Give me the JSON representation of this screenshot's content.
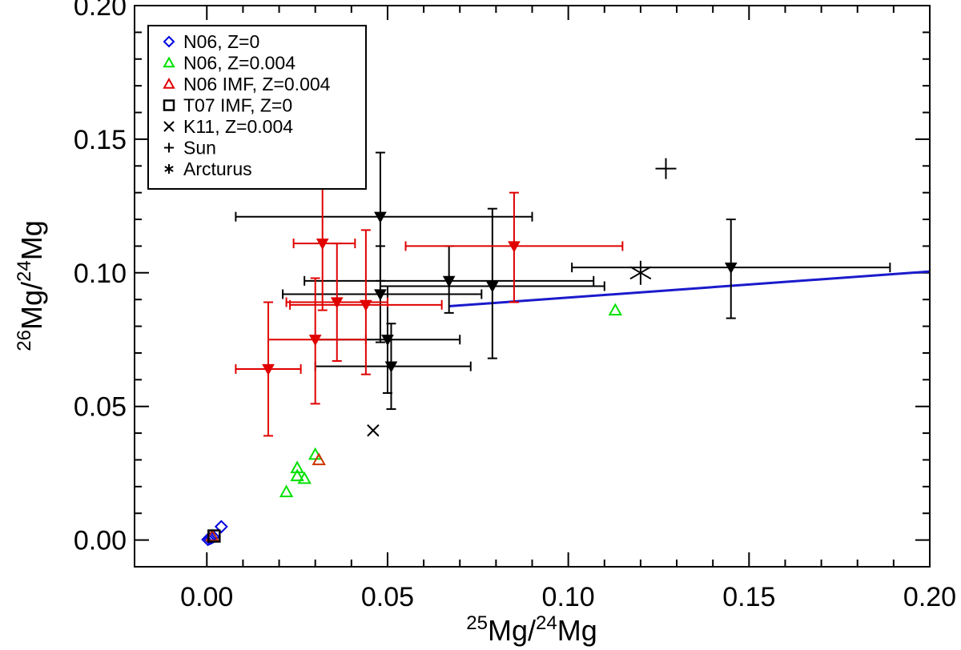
{
  "chart_data": {
    "type": "scatter",
    "xlabel": {
      "sup": "25",
      "base": "Mg/",
      "sup2": "24",
      "base2": "Mg"
    },
    "ylabel": {
      "sup": "26",
      "base": "Mg/",
      "sup2": "24",
      "base2": "Mg"
    },
    "xlim": [
      -0.02,
      0.2
    ],
    "ylim": [
      -0.01,
      0.2
    ],
    "xticks": [
      0.0,
      0.05,
      0.1,
      0.15,
      0.2
    ],
    "xtick_labels": [
      "0.00",
      "0.05",
      "0.10",
      "0.15",
      "0.20"
    ],
    "yticks": [
      0.0,
      0.05,
      0.1,
      0.15,
      0.2
    ],
    "ytick_labels": [
      "0.00",
      "0.05",
      "0.10",
      "0.15",
      "0.20"
    ],
    "colors": {
      "blue": "#0000e0",
      "green": "#00e000",
      "red": "#e00000",
      "black": "#000000",
      "line": "#1a1acc"
    },
    "legend": [
      {
        "label": "N06, Z=0",
        "marker": "diamond",
        "color": "#0000e0"
      },
      {
        "label": "N06, Z=0.004",
        "marker": "triangle",
        "color": "#00e000"
      },
      {
        "label": "N06 IMF, Z=0.004",
        "marker": "triangle",
        "color": "#e00000"
      },
      {
        "label": "T07 IMF, Z=0",
        "marker": "square",
        "color": "#000000"
      },
      {
        "label": "K11, Z=0.004",
        "marker": "cross",
        "color": "#000000"
      },
      {
        "label": "Sun",
        "marker": "plus",
        "color": "#000000"
      },
      {
        "label": "Arcturus",
        "marker": "asterisk",
        "color": "#000000"
      }
    ],
    "series": [
      {
        "name": "N06, Z=0",
        "marker": "diamond",
        "color": "#0000e0",
        "points": [
          [
            0.0003,
            0.0002
          ],
          [
            0.0008,
            0.0005
          ],
          [
            0.0013,
            0.0008
          ],
          [
            0.0018,
            0.0012
          ],
          [
            0.004,
            0.005
          ]
        ]
      },
      {
        "name": "N06, Z=0.004",
        "marker": "triangle",
        "color": "#00e000",
        "points": [
          [
            0.022,
            0.018
          ],
          [
            0.025,
            0.024
          ],
          [
            0.025,
            0.027
          ],
          [
            0.027,
            0.023
          ],
          [
            0.03,
            0.032
          ],
          [
            0.113,
            0.086
          ]
        ]
      },
      {
        "name": "N06 IMF, Z=0.004",
        "marker": "triangle",
        "color": "#cc3300",
        "points": [
          [
            0.031,
            0.03
          ],
          [
            0.0015,
            0.0015
          ]
        ]
      },
      {
        "name": "T07 IMF, Z=0",
        "marker": "square",
        "color": "#000000",
        "points": [
          [
            0.002,
            0.0015
          ]
        ]
      },
      {
        "name": "K11, Z=0.004",
        "marker": "cross",
        "color": "#000000",
        "points": [
          [
            0.046,
            0.041
          ]
        ]
      },
      {
        "name": "Sun",
        "marker": "plus",
        "color": "#000000",
        "points": [
          [
            0.127,
            0.139
          ]
        ]
      },
      {
        "name": "Arcturus",
        "marker": "asterisk",
        "color": "#000000",
        "points": [
          [
            0.12,
            0.1
          ]
        ]
      }
    ],
    "errorbars_red": [
      {
        "x": 0.017,
        "y": 0.064,
        "xlo": 0.008,
        "xhi": 0.026,
        "ylo": 0.039,
        "yhi": 0.089
      },
      {
        "x": 0.03,
        "y": 0.075,
        "xlo": 0.017,
        "xhi": 0.044,
        "ylo": 0.051,
        "yhi": 0.098
      },
      {
        "x": 0.032,
        "y": 0.111,
        "xlo": 0.024,
        "xhi": 0.041,
        "ylo": 0.086,
        "yhi": 0.136
      },
      {
        "x": 0.036,
        "y": 0.089,
        "xlo": 0.022,
        "xhi": 0.05,
        "ylo": 0.067,
        "yhi": 0.111
      },
      {
        "x": 0.044,
        "y": 0.088,
        "xlo": 0.023,
        "xhi": 0.065,
        "ylo": 0.062,
        "yhi": 0.116
      },
      {
        "x": 0.085,
        "y": 0.11,
        "xlo": 0.055,
        "xhi": 0.115,
        "ylo": 0.089,
        "yhi": 0.13
      }
    ],
    "errorbars_black": [
      {
        "x": 0.048,
        "y": 0.121,
        "xlo": 0.008,
        "xhi": 0.09,
        "ylo": 0.097,
        "yhi": 0.145
      },
      {
        "x": 0.048,
        "y": 0.092,
        "xlo": 0.021,
        "xhi": 0.076,
        "ylo": 0.074,
        "yhi": 0.11
      },
      {
        "x": 0.05,
        "y": 0.075,
        "xlo": 0.03,
        "xhi": 0.07,
        "ylo": 0.055,
        "yhi": 0.095
      },
      {
        "x": 0.051,
        "y": 0.065,
        "xlo": 0.03,
        "xhi": 0.073,
        "ylo": 0.049,
        "yhi": 0.081
      },
      {
        "x": 0.067,
        "y": 0.097,
        "xlo": 0.027,
        "xhi": 0.107,
        "ylo": 0.085,
        "yhi": 0.11
      },
      {
        "x": 0.079,
        "y": 0.095,
        "xlo": 0.048,
        "xhi": 0.11,
        "ylo": 0.068,
        "yhi": 0.124
      },
      {
        "x": 0.145,
        "y": 0.102,
        "xlo": 0.101,
        "xhi": 0.189,
        "ylo": 0.083,
        "yhi": 0.12
      }
    ],
    "trend_line": {
      "x0": 0.067,
      "y0": 0.0875,
      "x1": 0.2,
      "y1": 0.1005
    }
  }
}
